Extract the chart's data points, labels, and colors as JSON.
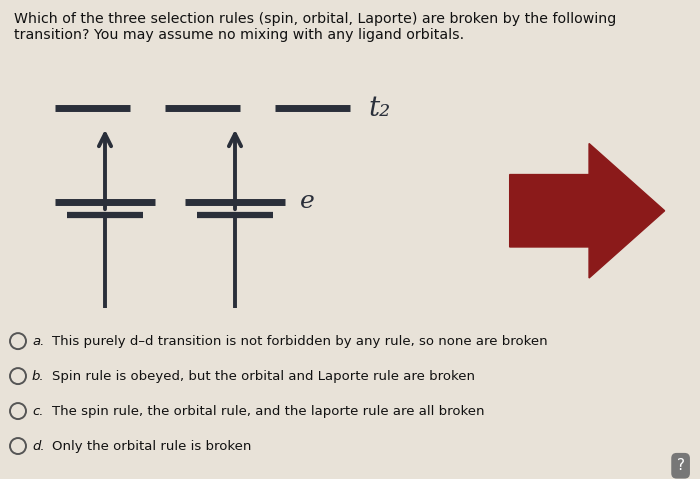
{
  "title_text": "Which of the three selection rules (spin, orbital, Laporte) are broken by the following\ntransition? You may assume no mixing with any ligand orbitals.",
  "bg_color": "#e8e2d8",
  "diagram_bg": "#dbd6cc",
  "title_color": "#111111",
  "t2_label": "t₂",
  "e_label": "e",
  "arrow_body_color": "#8b1a1a",
  "options": [
    {
      "label": "a.",
      "text": "This purely d–d transition is not forbidden by any rule, so none are broken"
    },
    {
      "label": "b.",
      "text": "Spin rule is obeyed, but the orbital and Laporte rule are broken"
    },
    {
      "label": "c.",
      "text": "The spin rule, the orbital rule, and the laporte rule are all broken"
    },
    {
      "label": "d.",
      "text": "Only the orbital rule is broken"
    }
  ],
  "option_circle_color": "#555555",
  "option_text_color": "#111111",
  "line_color": "#2a2f3a",
  "line_width": 5.0,
  "up_arrow_color": "#2a2f3a"
}
